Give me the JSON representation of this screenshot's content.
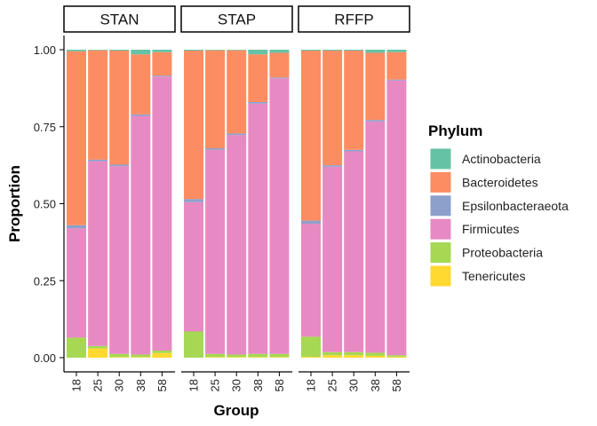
{
  "chart_data": {
    "type": "bar",
    "stacked": true,
    "xlabel": "Group",
    "ylabel": "Proportion",
    "ylim": [
      0,
      1
    ],
    "yticks": [
      "0.00",
      "0.25",
      "0.50",
      "0.75",
      "1.00"
    ],
    "ytick_values": [
      0,
      0.25,
      0.5,
      0.75,
      1.0
    ],
    "legend_title": "Phylum",
    "legend_position": "right",
    "grid": false,
    "stack_order": [
      "Tenericutes",
      "Proteobacteria",
      "Firmicutes",
      "Epsilonbacteraeota",
      "Bacteroidetes",
      "Actinobacteria"
    ],
    "phyla": [
      {
        "name": "Actinobacteria",
        "color": "#66C2A5"
      },
      {
        "name": "Bacteroidetes",
        "color": "#FC8D62"
      },
      {
        "name": "Epsilonbacteraeota",
        "color": "#8DA0CB"
      },
      {
        "name": "Firmicutes",
        "color": "#E78AC3"
      },
      {
        "name": "Proteobacteria",
        "color": "#A6D854"
      },
      {
        "name": "Tenericutes",
        "color": "#FFD92F"
      }
    ],
    "panels": [
      {
        "label": "STAN",
        "categories": [
          "18",
          "25",
          "30",
          "38",
          "58"
        ],
        "values": {
          "Tenericutes": [
            0.0,
            0.03,
            0.002,
            0.002,
            0.015
          ],
          "Proteobacteria": [
            0.065,
            0.008,
            0.01,
            0.008,
            0.008
          ],
          "Firmicutes": [
            0.355,
            0.6,
            0.61,
            0.775,
            0.89
          ],
          "Epsilonbacteraeota": [
            0.01,
            0.005,
            0.005,
            0.005,
            0.003
          ],
          "Bacteroidetes": [
            0.565,
            0.355,
            0.37,
            0.195,
            0.076
          ],
          "Actinobacteria": [
            0.005,
            0.002,
            0.003,
            0.015,
            0.008
          ]
        }
      },
      {
        "label": "STAP",
        "categories": [
          "18",
          "25",
          "30",
          "38",
          "58"
        ],
        "values": {
          "Tenericutes": [
            0.0,
            0.002,
            0.002,
            0.002,
            0.002
          ],
          "Proteobacteria": [
            0.085,
            0.01,
            0.008,
            0.01,
            0.01
          ],
          "Firmicutes": [
            0.42,
            0.663,
            0.713,
            0.813,
            0.895
          ],
          "Epsilonbacteraeota": [
            0.01,
            0.005,
            0.005,
            0.005,
            0.003
          ],
          "Bacteroidetes": [
            0.482,
            0.318,
            0.27,
            0.155,
            0.08
          ],
          "Actinobacteria": [
            0.003,
            0.002,
            0.002,
            0.015,
            0.01
          ]
        }
      },
      {
        "label": "RFFP",
        "categories": [
          "18",
          "25",
          "30",
          "38",
          "58"
        ],
        "values": {
          "Tenericutes": [
            0.003,
            0.008,
            0.008,
            0.006,
            0.003
          ],
          "Proteobacteria": [
            0.065,
            0.01,
            0.01,
            0.01,
            0.005
          ],
          "Firmicutes": [
            0.367,
            0.602,
            0.652,
            0.751,
            0.892
          ],
          "Epsilonbacteraeota": [
            0.01,
            0.005,
            0.005,
            0.005,
            0.003
          ],
          "Bacteroidetes": [
            0.552,
            0.372,
            0.322,
            0.218,
            0.089
          ],
          "Actinobacteria": [
            0.003,
            0.003,
            0.003,
            0.01,
            0.008
          ]
        }
      }
    ]
  }
}
